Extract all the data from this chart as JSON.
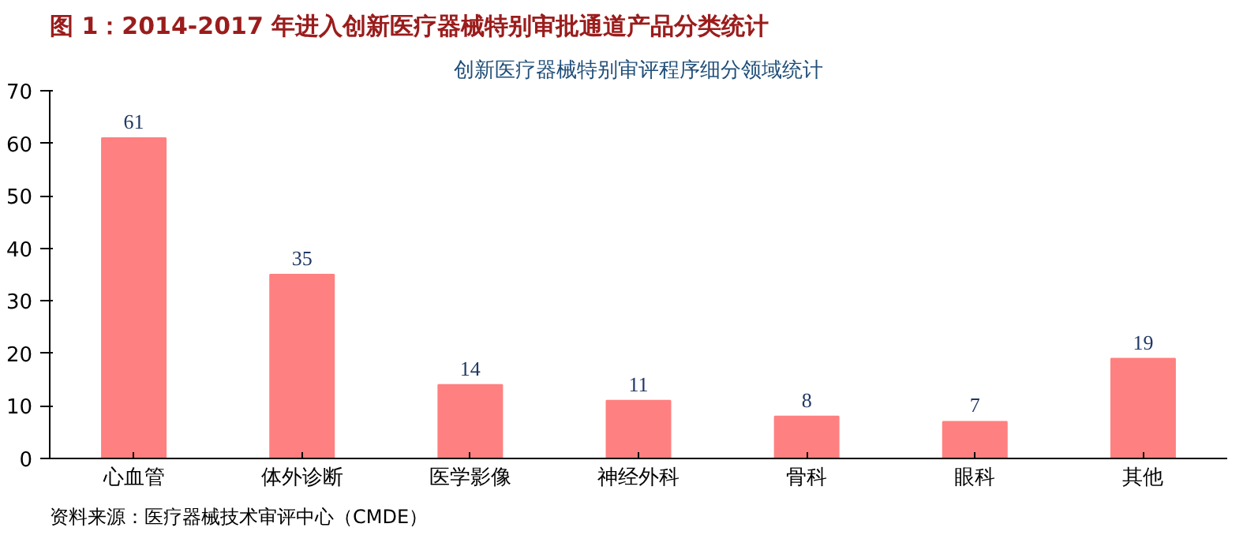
{
  "chart_data": {
    "type": "bar",
    "title": "图 1：2014-2017 年进入创新医疗器械特别审批通道产品分类统计",
    "subtitle": "创新医疗器械特别审评程序细分领域统计",
    "annotations": [
      "资料来源：医疗器械技术审评中心（CMDE）"
    ],
    "categories": [
      "心血管",
      "体外诊断",
      "医学影像",
      "神经外科",
      "骨科",
      "眼科",
      "其他"
    ],
    "values": [
      61,
      35,
      14,
      11,
      8,
      7,
      19
    ],
    "color": "#ff8080",
    "ylim": [
      0,
      70
    ],
    "yticks": [
      0,
      10,
      20,
      30,
      40,
      50,
      60,
      70
    ],
    "data_labels": true,
    "grid": false
  }
}
